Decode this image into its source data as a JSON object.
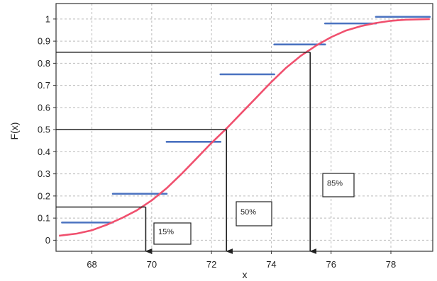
{
  "chart_data": {
    "type": "line",
    "xlabel": "x",
    "ylabel": "F(x)",
    "xlim": [
      66.8,
      79.4
    ],
    "ylim": [
      -0.05,
      1.07
    ],
    "x_ticks": [
      68,
      70,
      72,
      74,
      76,
      78
    ],
    "y_ticks": [
      0,
      0.1,
      0.2,
      0.3,
      0.4,
      0.5,
      0.6,
      0.7,
      0.8,
      0.9,
      1
    ],
    "grid": true,
    "cdf_curve": {
      "color": "#f0506e",
      "x": [
        66.9,
        67.5,
        68,
        68.5,
        69,
        69.5,
        70,
        70.5,
        71,
        71.5,
        72,
        72.5,
        73,
        73.5,
        74,
        74.5,
        75,
        75.5,
        76,
        76.5,
        77,
        77.5,
        78,
        78.5,
        79.3
      ],
      "y": [
        0.02,
        0.03,
        0.045,
        0.07,
        0.1,
        0.135,
        0.18,
        0.235,
        0.3,
        0.37,
        0.44,
        0.505,
        0.575,
        0.645,
        0.715,
        0.78,
        0.835,
        0.88,
        0.918,
        0.948,
        0.968,
        0.982,
        0.992,
        0.997,
        1.0
      ]
    },
    "step_segments": {
      "color": "#4a72c0",
      "segments": [
        {
          "x0": 67.0,
          "x1": 68.7,
          "y": 0.08
        },
        {
          "x0": 68.7,
          "x1": 70.5,
          "y": 0.21
        },
        {
          "x0": 70.5,
          "x1": 72.3,
          "y": 0.445
        },
        {
          "x0": 72.3,
          "x1": 74.1,
          "y": 0.75
        },
        {
          "x0": 74.1,
          "x1": 75.8,
          "y": 0.885
        },
        {
          "x0": 75.8,
          "x1": 77.5,
          "y": 0.98
        },
        {
          "x0": 77.5,
          "x1": 79.3,
          "y": 1.01
        }
      ]
    },
    "percentile_guides": [
      {
        "label": "15%",
        "level": 0.15,
        "x": 69.8
      },
      {
        "label": "50%",
        "level": 0.5,
        "x": 72.5
      },
      {
        "label": "85%",
        "level": 0.85,
        "x": 75.3
      }
    ]
  }
}
